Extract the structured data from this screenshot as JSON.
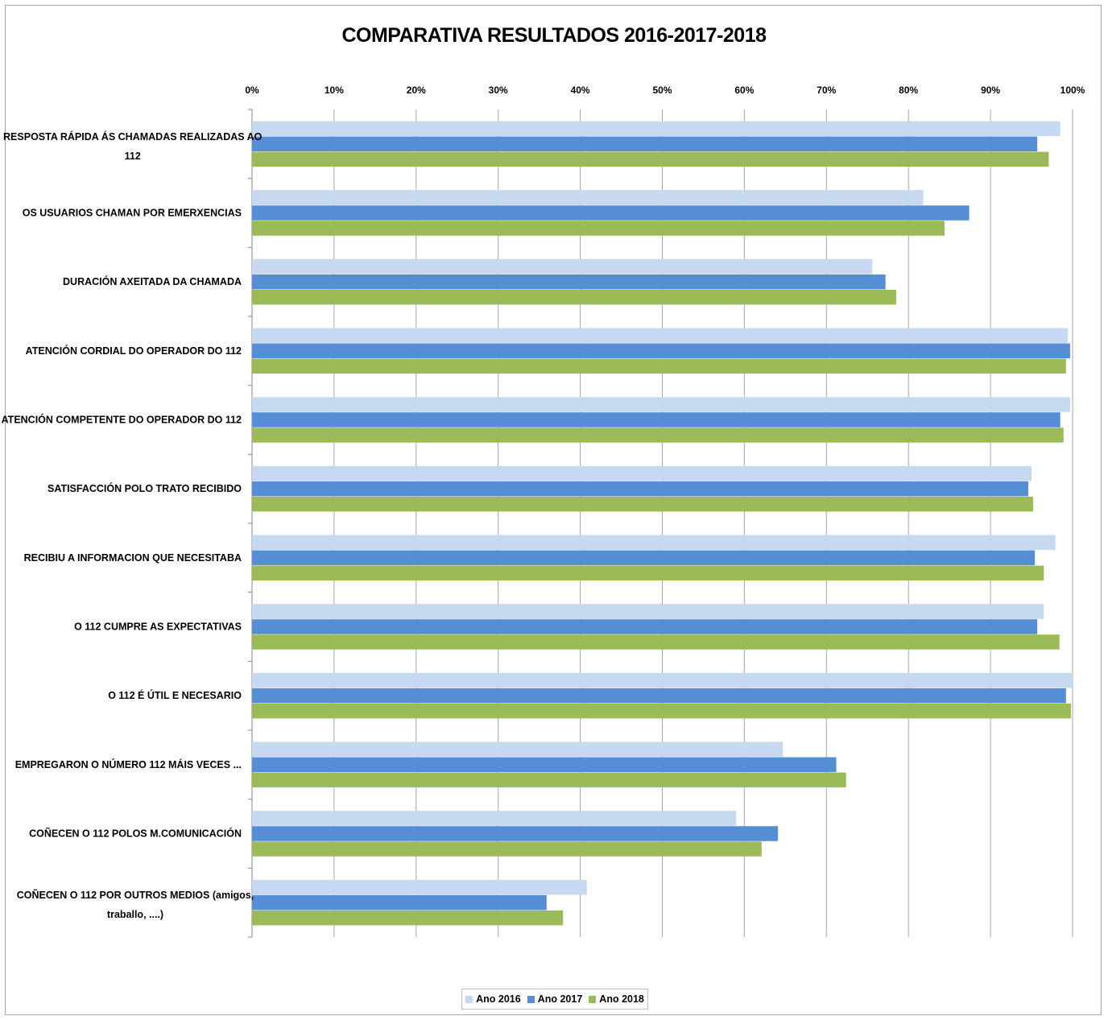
{
  "chart_data": {
    "type": "bar",
    "orientation": "horizontal",
    "title": "COMPARATIVA RESULTADOS 2016-2017-2018",
    "xlabel": "",
    "ylabel": "",
    "xlim": [
      0,
      100
    ],
    "x_ticks": [
      "0%",
      "10%",
      "20%",
      "30%",
      "40%",
      "50%",
      "60%",
      "70%",
      "80%",
      "90%",
      "100%"
    ],
    "grid": true,
    "legend_position": "bottom",
    "categories": [
      [
        "RESPOSTA RÁPIDA ÁS CHAMADAS REALIZADAS AO",
        "112"
      ],
      [
        "OS USUARIOS CHAMAN POR EMERXENCIAS"
      ],
      [
        "DURACIÓN AXEITADA DA CHAMADA"
      ],
      [
        "ATENCIÓN CORDIAL DO OPERADOR DO 112"
      ],
      [
        "ATENCIÓN COMPETENTE DO OPERADOR DO 112"
      ],
      [
        "SATISFACCIÓN POLO TRATO RECIBIDO"
      ],
      [
        "RECIBIU A INFORMACION QUE NECESITABA"
      ],
      [
        "O 112 CUMPRE AS EXPECTATIVAS"
      ],
      [
        "O 112 É ÚTIL E NECESARIO"
      ],
      [
        "EMPREGARON O NÚMERO 112 MÁIS VECES ..."
      ],
      [
        "COÑECEN O 112 POLOS M.COMUNICACIÓN"
      ],
      [
        "COÑECEN O 112 POR OUTROS MEDIOS (amigos,",
        "traballo, ....)"
      ]
    ],
    "series": [
      {
        "name": "Ano 2016",
        "color": "#c6d9f1",
        "values": [
          98.5,
          81.8,
          75.6,
          99.4,
          99.7,
          95.0,
          97.9,
          96.5,
          100.0,
          64.7,
          59.0,
          40.8
        ]
      },
      {
        "name": "Ano 2017",
        "color": "#558ed5",
        "values": [
          95.7,
          87.4,
          77.2,
          99.7,
          98.5,
          94.6,
          95.4,
          95.7,
          99.2,
          71.2,
          64.1,
          35.9
        ]
      },
      {
        "name": "Ano 2018",
        "color": "#9bbb59",
        "values": [
          97.1,
          84.4,
          78.5,
          99.2,
          98.9,
          95.2,
          96.5,
          98.4,
          99.8,
          72.4,
          62.1,
          37.9
        ]
      }
    ]
  }
}
